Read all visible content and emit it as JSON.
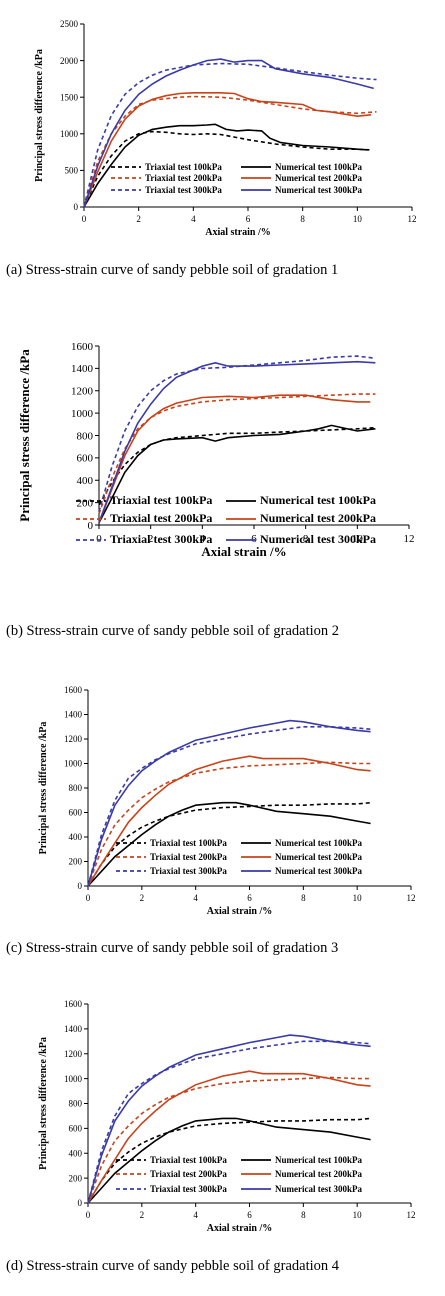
{
  "chart_data": [
    {
      "type": "line",
      "caption": "(a) Stress-strain curve of sandy pebble soil of gradation 1",
      "xlabel": "Axial strain /%",
      "ylabel": "Principal stress difference /kPa",
      "xlim": [
        0,
        12
      ],
      "ylim": [
        0,
        2500
      ],
      "xticks": [
        "0",
        "2",
        "4",
        "6",
        "8",
        "10",
        "12"
      ],
      "yticks": [
        "0",
        "500",
        "1000",
        "1500",
        "2000",
        "2500"
      ],
      "legend_position": "bottom-right",
      "series": [
        {
          "name": "Triaxial test 100kPa",
          "color": "#000000",
          "dashed": true,
          "x": [
            0,
            0.5,
            1,
            1.5,
            2,
            2.5,
            3,
            3.5,
            4,
            4.5,
            5,
            6,
            7,
            8,
            9,
            10,
            10.5
          ],
          "y": [
            0,
            420,
            700,
            900,
            1000,
            1030,
            1020,
            1000,
            990,
            1000,
            990,
            920,
            860,
            820,
            790,
            790,
            780
          ]
        },
        {
          "name": "Triaxial test 200kPa",
          "color": "#c8431a",
          "dashed": true,
          "x": [
            0,
            0.5,
            1,
            1.5,
            2,
            2.5,
            3,
            3.5,
            4,
            5,
            6,
            7,
            8,
            9,
            10,
            10.7
          ],
          "y": [
            0,
            620,
            1000,
            1240,
            1400,
            1460,
            1480,
            1500,
            1510,
            1500,
            1460,
            1400,
            1340,
            1300,
            1280,
            1300
          ]
        },
        {
          "name": "Triaxial test 300kPa",
          "color": "#3a3aa8",
          "dashed": true,
          "x": [
            0,
            0.5,
            1,
            1.5,
            2,
            2.5,
            3,
            4,
            5,
            6,
            7,
            8,
            9,
            10,
            10.7
          ],
          "y": [
            0,
            780,
            1250,
            1540,
            1700,
            1800,
            1870,
            1940,
            1960,
            1950,
            1900,
            1850,
            1800,
            1760,
            1740
          ]
        },
        {
          "name": "Numerical test 100kPa",
          "color": "#000000",
          "dashed": false,
          "x": [
            0,
            0.5,
            1,
            1.5,
            2,
            2.5,
            3,
            3.5,
            4,
            4.5,
            4.8,
            5.2,
            5.6,
            6,
            6.5,
            6.8,
            7.2,
            8,
            9,
            10,
            10.4
          ],
          "y": [
            0,
            320,
            580,
            820,
            980,
            1060,
            1090,
            1110,
            1110,
            1120,
            1130,
            1060,
            1040,
            1050,
            1040,
            940,
            880,
            840,
            820,
            790,
            780
          ]
        },
        {
          "name": "Numerical test 200kPa",
          "color": "#c8431a",
          "dashed": false,
          "x": [
            0,
            0.5,
            1,
            1.5,
            2,
            2.5,
            3,
            3.5,
            4,
            5,
            5.5,
            6,
            6.5,
            7,
            8,
            8.5,
            9,
            10,
            10.5
          ],
          "y": [
            0,
            480,
            900,
            1200,
            1380,
            1470,
            1520,
            1550,
            1560,
            1560,
            1550,
            1480,
            1440,
            1430,
            1400,
            1320,
            1300,
            1240,
            1260
          ]
        },
        {
          "name": "Numerical test 300kPa",
          "color": "#3a3aa8",
          "dashed": false,
          "x": [
            0,
            0.5,
            1,
            1.5,
            2,
            2.5,
            3,
            3.5,
            4,
            4.5,
            5,
            5.5,
            6,
            6.5,
            7,
            8,
            9,
            10,
            10.6
          ],
          "y": [
            0,
            560,
            1000,
            1320,
            1540,
            1680,
            1790,
            1870,
            1940,
            2000,
            2020,
            1980,
            2000,
            2000,
            1890,
            1820,
            1770,
            1680,
            1620
          ]
        }
      ]
    },
    {
      "type": "line",
      "caption": "(b) Stress-strain curve of sandy pebble soil of gradation 2",
      "xlabel": "Axial strain /%",
      "ylabel": "Principal stress difference /kPa",
      "xlim": [
        0,
        12
      ],
      "ylim": [
        0,
        1600
      ],
      "xticks": [
        "0",
        "2",
        "4",
        "6",
        "8",
        "10",
        "12"
      ],
      "yticks": [
        "0",
        "200",
        "400",
        "600",
        "800",
        "1000",
        "1200",
        "1400",
        "1600"
      ],
      "legend_position": "bottom",
      "series": [
        {
          "name": "Triaxial test 100kPa",
          "color": "#000000",
          "dashed": true,
          "x": [
            0,
            0.5,
            1,
            1.5,
            2,
            2.5,
            3,
            4,
            5,
            6,
            7,
            8,
            9,
            10,
            10.7
          ],
          "y": [
            180,
            380,
            540,
            650,
            720,
            760,
            780,
            800,
            820,
            820,
            830,
            840,
            850,
            860,
            870
          ]
        },
        {
          "name": "Triaxial test 200kPa",
          "color": "#c8431a",
          "dashed": true,
          "x": [
            0,
            0.5,
            1,
            1.5,
            2,
            2.5,
            3,
            4,
            5,
            6,
            7,
            8,
            9,
            10,
            10.7
          ],
          "y": [
            100,
            420,
            680,
            860,
            960,
            1020,
            1060,
            1100,
            1120,
            1130,
            1140,
            1150,
            1160,
            1170,
            1170
          ]
        },
        {
          "name": "Triaxial test 300kPa",
          "color": "#3a3aa8",
          "dashed": true,
          "x": [
            0,
            0.5,
            1,
            1.5,
            2,
            2.5,
            3,
            4,
            5,
            6,
            7,
            8,
            9,
            10,
            10.7
          ],
          "y": [
            120,
            520,
            840,
            1060,
            1200,
            1290,
            1350,
            1400,
            1410,
            1430,
            1450,
            1470,
            1500,
            1510,
            1490
          ]
        },
        {
          "name": "Numerical test 100kPa",
          "color": "#000000",
          "dashed": false,
          "x": [
            0,
            0.5,
            1,
            1.5,
            2,
            2.5,
            3,
            4,
            4.5,
            5,
            6,
            7,
            8,
            8.5,
            9,
            10,
            10.7
          ],
          "y": [
            20,
            240,
            470,
            620,
            720,
            760,
            770,
            780,
            750,
            780,
            800,
            810,
            840,
            860,
            890,
            840,
            860
          ]
        },
        {
          "name": "Numerical test 200kPa",
          "color": "#c8431a",
          "dashed": false,
          "x": [
            0,
            0.5,
            1,
            1.5,
            2,
            2.5,
            3,
            4,
            5,
            6,
            7,
            8,
            9,
            10,
            10.5
          ],
          "y": [
            20,
            320,
            620,
            840,
            960,
            1040,
            1090,
            1140,
            1150,
            1140,
            1160,
            1160,
            1120,
            1100,
            1100
          ]
        },
        {
          "name": "Numerical test 300kPa",
          "color": "#3a3aa8",
          "dashed": false,
          "x": [
            0,
            0.5,
            1,
            1.5,
            2,
            2.5,
            3,
            4,
            4.5,
            5,
            6,
            7,
            8,
            9,
            10,
            10.7
          ],
          "y": [
            20,
            340,
            660,
            910,
            1080,
            1220,
            1320,
            1420,
            1450,
            1420,
            1420,
            1430,
            1440,
            1450,
            1460,
            1450
          ]
        }
      ]
    },
    {
      "type": "line",
      "caption": "(c) Stress-strain curve of sandy pebble soil of gradation 3",
      "xlabel": "Axial strain /%",
      "ylabel": "Principal stress difference /kPa",
      "xlim": [
        0,
        12
      ],
      "ylim": [
        0,
        1600
      ],
      "xticks": [
        "0",
        "2",
        "4",
        "6",
        "8",
        "10",
        "12"
      ],
      "yticks": [
        "0",
        "200",
        "400",
        "600",
        "800",
        "1000",
        "1200",
        "1400",
        "1600"
      ],
      "legend_position": "bottom",
      "series": [
        {
          "name": "Triaxial test 100kPa",
          "color": "#000000",
          "dashed": true,
          "x": [
            0,
            0.5,
            1,
            1.5,
            2,
            2.5,
            3,
            4,
            5,
            6,
            7,
            8,
            9,
            10,
            10.5
          ],
          "y": [
            0,
            180,
            320,
            410,
            480,
            530,
            570,
            620,
            640,
            650,
            660,
            660,
            670,
            670,
            680
          ]
        },
        {
          "name": "Triaxial test 200kPa",
          "color": "#c8431a",
          "dashed": true,
          "x": [
            0,
            0.5,
            1,
            1.5,
            2,
            2.5,
            3,
            4,
            5,
            6,
            7,
            8,
            9,
            10,
            10.5
          ],
          "y": [
            0,
            300,
            500,
            620,
            720,
            790,
            850,
            920,
            960,
            980,
            990,
            1000,
            1010,
            1000,
            1000
          ]
        },
        {
          "name": "Triaxial test 300kPa",
          "color": "#3a3aa8",
          "dashed": true,
          "x": [
            0,
            0.5,
            1,
            1.5,
            2,
            2.5,
            3,
            4,
            5,
            6,
            7,
            8,
            9,
            10,
            10.5
          ],
          "y": [
            0,
            420,
            700,
            880,
            960,
            1030,
            1080,
            1160,
            1200,
            1240,
            1270,
            1300,
            1300,
            1290,
            1280
          ]
        },
        {
          "name": "Numerical test 100kPa",
          "color": "#000000",
          "dashed": false,
          "x": [
            0,
            0.5,
            1,
            1.5,
            2,
            2.5,
            3,
            3.5,
            4,
            5,
            5.5,
            6,
            7,
            8,
            9,
            10,
            10.5
          ],
          "y": [
            0,
            120,
            240,
            330,
            420,
            500,
            570,
            620,
            660,
            680,
            680,
            660,
            610,
            590,
            570,
            530,
            510
          ]
        },
        {
          "name": "Numerical test 200kPa",
          "color": "#c8431a",
          "dashed": false,
          "x": [
            0,
            0.5,
            1,
            1.5,
            2,
            2.5,
            3,
            4,
            5,
            6,
            6.5,
            7,
            8,
            9,
            10,
            10.5
          ],
          "y": [
            0,
            180,
            350,
            520,
            640,
            740,
            830,
            950,
            1020,
            1060,
            1040,
            1040,
            1040,
            1000,
            950,
            940
          ]
        },
        {
          "name": "Numerical test 300kPa",
          "color": "#3a3aa8",
          "dashed": false,
          "x": [
            0,
            0.5,
            1,
            1.5,
            2,
            2.5,
            3,
            4,
            5,
            6,
            7,
            7.5,
            8,
            9,
            10,
            10.5
          ],
          "y": [
            0,
            380,
            660,
            820,
            940,
            1020,
            1090,
            1190,
            1240,
            1290,
            1330,
            1350,
            1340,
            1300,
            1270,
            1260
          ]
        }
      ]
    },
    {
      "type": "line",
      "caption": "(d) Stress-strain curve of sandy pebble soil of gradation 4",
      "xlabel": "Axial strain /%",
      "ylabel": "Principal stress difference /kPa",
      "xlim": [
        0,
        12
      ],
      "ylim": [
        0,
        1600
      ],
      "xticks": [
        "0",
        "2",
        "4",
        "6",
        "8",
        "10",
        "12"
      ],
      "yticks": [
        "0",
        "200",
        "400",
        "600",
        "800",
        "1000",
        "1200",
        "1400",
        "1600"
      ],
      "legend_position": "bottom",
      "series": [
        {
          "name": "Triaxial test 100kPa",
          "color": "#000000",
          "dashed": true,
          "x": [
            0,
            0.5,
            1,
            1.5,
            2,
            2.5,
            3,
            4,
            5,
            6,
            7,
            8,
            9,
            10,
            10.5
          ],
          "y": [
            0,
            180,
            320,
            410,
            480,
            530,
            570,
            620,
            640,
            650,
            660,
            660,
            670,
            670,
            680
          ]
        },
        {
          "name": "Triaxial test 200kPa",
          "color": "#c8431a",
          "dashed": true,
          "x": [
            0,
            0.5,
            1,
            1.5,
            2,
            2.5,
            3,
            4,
            5,
            6,
            7,
            8,
            9,
            10,
            10.5
          ],
          "y": [
            0,
            300,
            500,
            620,
            720,
            790,
            850,
            920,
            960,
            980,
            990,
            1000,
            1010,
            1000,
            1000
          ]
        },
        {
          "name": "Triaxial test 300kPa",
          "color": "#3a3aa8",
          "dashed": true,
          "x": [
            0,
            0.5,
            1,
            1.5,
            2,
            2.5,
            3,
            4,
            5,
            6,
            7,
            8,
            9,
            10,
            10.5
          ],
          "y": [
            0,
            420,
            700,
            880,
            960,
            1030,
            1080,
            1160,
            1200,
            1240,
            1270,
            1300,
            1300,
            1290,
            1280
          ]
        },
        {
          "name": "Numerical test 100kPa",
          "color": "#000000",
          "dashed": false,
          "x": [
            0,
            0.5,
            1,
            1.5,
            2,
            2.5,
            3,
            3.5,
            4,
            5,
            5.5,
            6,
            7,
            8,
            9,
            10,
            10.5
          ],
          "y": [
            0,
            120,
            240,
            330,
            420,
            500,
            570,
            620,
            660,
            680,
            680,
            660,
            610,
            590,
            570,
            530,
            510
          ]
        },
        {
          "name": "Numerical test 200kPa",
          "color": "#c8431a",
          "dashed": false,
          "x": [
            0,
            0.5,
            1,
            1.5,
            2,
            2.5,
            3,
            4,
            5,
            6,
            6.5,
            7,
            8,
            9,
            10,
            10.5
          ],
          "y": [
            0,
            180,
            350,
            520,
            640,
            740,
            830,
            950,
            1020,
            1060,
            1040,
            1040,
            1040,
            1000,
            950,
            940
          ]
        },
        {
          "name": "Numerical test 300kPa",
          "color": "#3a3aa8",
          "dashed": false,
          "x": [
            0,
            0.5,
            1,
            1.5,
            2,
            2.5,
            3,
            4,
            5,
            6,
            7,
            7.5,
            8,
            9,
            10,
            10.5
          ],
          "y": [
            0,
            380,
            660,
            820,
            940,
            1020,
            1090,
            1190,
            1240,
            1290,
            1330,
            1350,
            1340,
            1300,
            1270,
            1260
          ]
        }
      ]
    }
  ]
}
